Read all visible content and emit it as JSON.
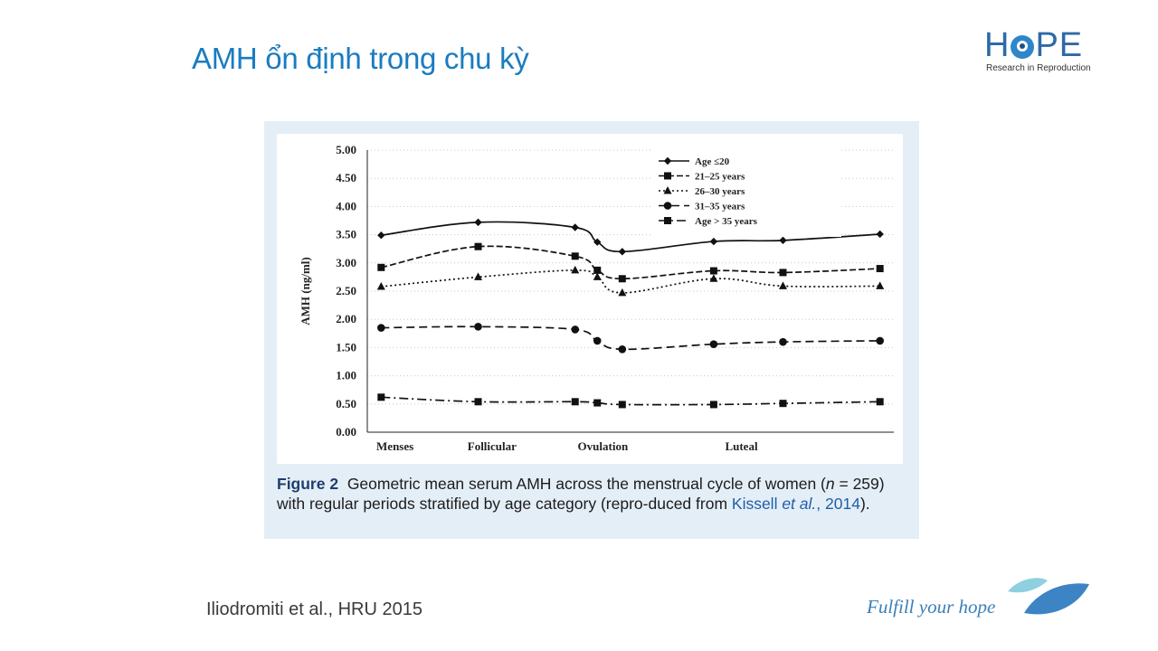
{
  "slide": {
    "title": "AMH ổn định trong chu kỳ",
    "logo_word_left": "H",
    "logo_word_right": "PE",
    "logo_subtitle": "Research in Reproduction",
    "reference": "Iliodromiti et al., HRU 2015",
    "tagline": "Fulfill your hope"
  },
  "caption": {
    "label": "Figure 2",
    "text_1": "Geometric mean serum AMH across the menstrual cycle of women (",
    "n_var": "n",
    "text_2": " = 259) with regular periods stratified by age category (repro-duced from ",
    "cite_author": "Kissell ",
    "cite_etal": "et al.",
    "cite_year": ", 2014",
    "text_end": ")."
  },
  "chart_data": {
    "type": "line",
    "ylabel": "AMH (ng/ml)",
    "xlabel": "",
    "ylim": [
      0,
      5
    ],
    "yticks": [
      "0.00",
      "0.50",
      "1.00",
      "1.50",
      "2.00",
      "2.50",
      "3.00",
      "3.50",
      "4.00",
      "4.50",
      "5.00"
    ],
    "x_categories": [
      "Menses",
      "Follicular",
      "Ovulation",
      "Luteal"
    ],
    "x_category_positions": [
      1,
      4.5,
      8.5,
      13.5
    ],
    "x": [
      0.5,
      4,
      7.5,
      8.3,
      9.2,
      12.5,
      15,
      18.5
    ],
    "grid": "horizontal dotted",
    "legend_position": "top-right",
    "series": [
      {
        "name": "Age ≤20",
        "marker": "diamond",
        "dash": "solid",
        "values": [
          3.49,
          3.72,
          3.63,
          3.37,
          3.2,
          3.38,
          3.4,
          3.51
        ]
      },
      {
        "name": "21–25 years",
        "marker": "square",
        "dash": "dashed",
        "values": [
          2.92,
          3.29,
          3.12,
          2.87,
          2.72,
          2.86,
          2.83,
          2.9
        ]
      },
      {
        "name": "26–30 years",
        "marker": "triangle",
        "dash": "dotted",
        "values": [
          2.58,
          2.75,
          2.87,
          2.75,
          2.47,
          2.72,
          2.59,
          2.59
        ]
      },
      {
        "name": "31–35 years",
        "marker": "circle",
        "dash": "longdash",
        "values": [
          1.85,
          1.87,
          1.82,
          1.62,
          1.47,
          1.56,
          1.6,
          1.62
        ]
      },
      {
        "name": "Age > 35 years",
        "marker": "square",
        "dash": "dashdot",
        "values": [
          0.62,
          0.54,
          0.54,
          0.52,
          0.49,
          0.49,
          0.51,
          0.54
        ]
      }
    ]
  },
  "colors": {
    "title": "#1a7cc1",
    "panel_bg": "#e4eef7",
    "series": "#111111",
    "caption_label": "#1f3e6e",
    "link": "#1f5fa8"
  }
}
